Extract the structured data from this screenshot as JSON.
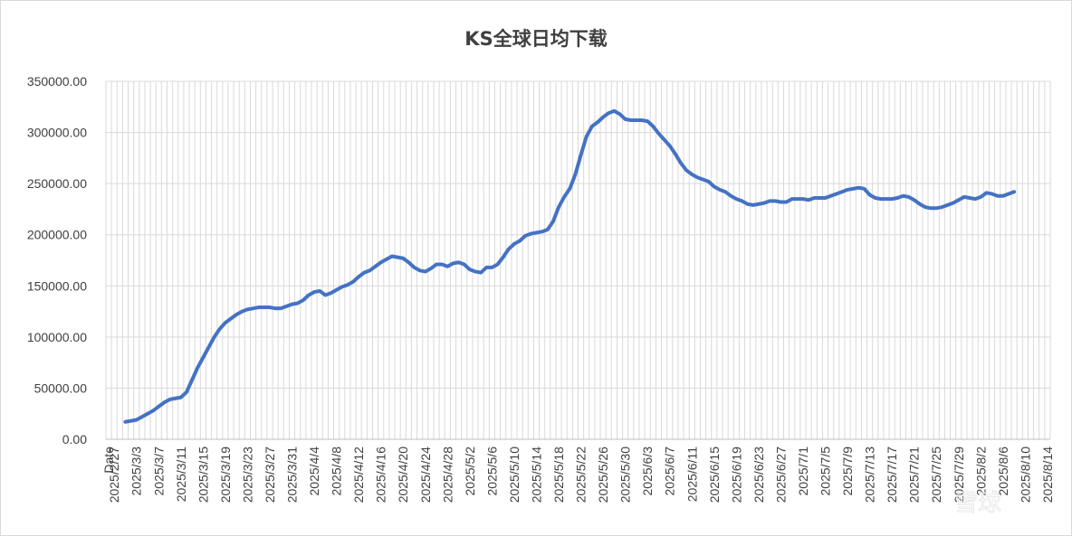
{
  "chart_data": {
    "type": "line",
    "title": "KS全球日均下载",
    "xlabel": "",
    "ylabel": "",
    "ylim": [
      0,
      350000
    ],
    "yticks": [
      "0.00",
      "50000.00",
      "100000.00",
      "150000.00",
      "200000.00",
      "250000.00",
      "300000.00",
      "350000.00"
    ],
    "xtick_labels": [
      "Date",
      "2025/2/27",
      "2025/3/3",
      "2025/3/7",
      "2025/3/11",
      "2025/3/15",
      "2025/3/19",
      "2025/3/23",
      "2025/3/27",
      "2025/3/31",
      "2025/4/4",
      "2025/4/8",
      "2025/4/12",
      "2025/4/16",
      "2025/4/20",
      "2025/4/24",
      "2025/4/28",
      "2025/5/2",
      "2025/5/6",
      "2025/5/10",
      "2025/5/14",
      "2025/5/18",
      "2025/5/22",
      "2025/5/26",
      "2025/5/30",
      "2025/6/3",
      "2025/6/7",
      "2025/6/11",
      "2025/6/15",
      "2025/6/19",
      "2025/6/23",
      "2025/6/27",
      "2025/7/1",
      "2025/7/5",
      "2025/7/9",
      "2025/7/13",
      "2025/7/17",
      "2025/7/21",
      "2025/7/25",
      "2025/7/29",
      "2025/8/2",
      "2025/8/6",
      "2025/8/10",
      "2025/8/14"
    ],
    "grid": true,
    "legend": "none",
    "series": [
      {
        "name": "",
        "color": "#4472c4",
        "start_date": "2025/3/1",
        "values": [
          17000,
          18000,
          19000,
          22000,
          25000,
          28000,
          32000,
          36000,
          39000,
          40000,
          41000,
          46000,
          58000,
          70000,
          80000,
          90000,
          100000,
          108000,
          114000,
          118000,
          122000,
          125000,
          127000,
          128000,
          129000,
          129000,
          129000,
          128000,
          128000,
          130000,
          132000,
          133000,
          136000,
          141000,
          144000,
          145000,
          141000,
          143000,
          146000,
          149000,
          151000,
          154000,
          159000,
          163000,
          165000,
          169000,
          173000,
          176000,
          179000,
          178000,
          177000,
          173000,
          168000,
          165000,
          164000,
          167000,
          171000,
          171000,
          169000,
          172000,
          173000,
          171000,
          166000,
          164000,
          163000,
          168000,
          168000,
          171000,
          178000,
          186000,
          191000,
          194000,
          199000,
          201000,
          202000,
          203000,
          205000,
          213000,
          227000,
          237000,
          245000,
          259000,
          278000,
          296000,
          306000,
          310000,
          315000,
          319000,
          321000,
          318000,
          313000,
          312000,
          312000,
          312000,
          311000,
          306000,
          299000,
          293000,
          287000,
          279000,
          270000,
          263000,
          259000,
          256000,
          254000,
          252000,
          247000,
          244000,
          242000,
          238000,
          235000,
          233000,
          230000,
          229000,
          230000,
          231000,
          233000,
          233000,
          232000,
          232000,
          235000,
          235000,
          235000,
          234000,
          236000,
          236000,
          236000,
          238000,
          240000,
          242000,
          244000,
          245000,
          246000,
          245000,
          239000,
          236000,
          235000,
          235000,
          235000,
          236000,
          238000,
          237000,
          234000,
          230000,
          227000,
          226000,
          226000,
          227000,
          229000,
          231000,
          234000,
          237000,
          236000,
          235000,
          237000,
          241000,
          240000,
          238000,
          238000,
          240000,
          242000
        ]
      }
    ]
  },
  "watermark": "雪球"
}
